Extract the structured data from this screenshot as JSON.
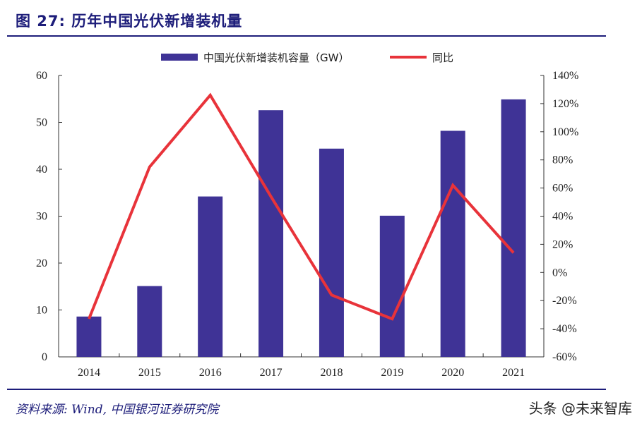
{
  "figure": {
    "title": "图 27: 历年中国光伏新增装机量",
    "source": "资料来源: Wind, 中国银河证券研究院",
    "watermark": "头条 @未来智库"
  },
  "colors": {
    "bar": "#3f3396",
    "line": "#e8333a",
    "title": "#1d1d7a"
  },
  "chart_data": {
    "type": "bar",
    "categories": [
      "2014",
      "2015",
      "2016",
      "2017",
      "2018",
      "2019",
      "2020",
      "2021"
    ],
    "series": [
      {
        "name": "中国光伏新增装机容量（GW）",
        "type": "bar",
        "axis": "left",
        "values": [
          8.6,
          15.1,
          34.2,
          52.6,
          44.4,
          30.1,
          48.2,
          54.9
        ]
      },
      {
        "name": "同比",
        "type": "line",
        "axis": "right",
        "values": [
          -33,
          75,
          126,
          54,
          -16,
          -33,
          62,
          14
        ]
      }
    ],
    "y_left": {
      "min": 0,
      "max": 60,
      "ticks": [
        "0",
        "10",
        "20",
        "30",
        "40",
        "50",
        "60"
      ]
    },
    "y_right": {
      "min": -60,
      "max": 140,
      "ticks": [
        "-60%",
        "-40%",
        "-20%",
        "0%",
        "20%",
        "40%",
        "60%",
        "80%",
        "100%",
        "120%",
        "140%"
      ]
    },
    "legend_position": "top-center",
    "grid": false
  }
}
